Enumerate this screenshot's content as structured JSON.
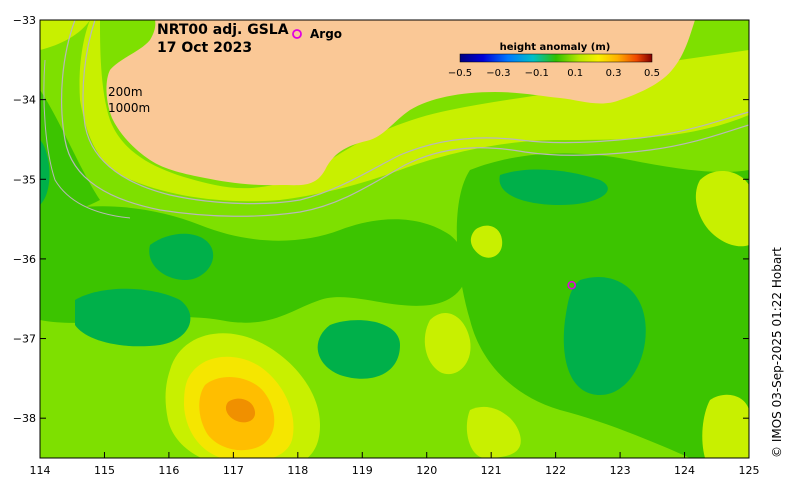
{
  "title": {
    "product": "NRT00 adj. GSLA",
    "date": "17 Oct 2023"
  },
  "legend": {
    "argo_symbol": "o",
    "argo_label": "Argo"
  },
  "depth_contours": {
    "shallow": "200m",
    "deep": "1000m"
  },
  "colorbar": {
    "title": "height anomaly (m)",
    "ticks": [
      "−0.5",
      "−0.3",
      "−0.1",
      "0.1",
      "0.3",
      "0.5"
    ],
    "colors": [
      "#000080",
      "#0000c8",
      "#0050ff",
      "#00a0ff",
      "#00c8c0",
      "#00b040",
      "#10c020",
      "#60d800",
      "#b0e800",
      "#f0f000",
      "#ffc000",
      "#ff8000",
      "#e04000",
      "#800000"
    ]
  },
  "axes": {
    "longitude_ticks": [
      "114",
      "115",
      "116",
      "117",
      "118",
      "119",
      "120",
      "121",
      "122",
      "123",
      "124",
      "125"
    ],
    "latitude_ticks": [
      "−33",
      "−34",
      "−35",
      "−36",
      "−37",
      "−38"
    ]
  },
  "argo_float": {
    "lon": 122.25,
    "lat": -36.33
  },
  "credit": "© IMOS 03‑Sep‑2025 01:22 Hobart",
  "colors": {
    "land": "#fac896",
    "ocean_base": "#7ee000",
    "low_anomaly": "#3cc400",
    "very_low_anomaly": "#00b04a",
    "high_anomaly": "#c8f000",
    "peak_yellow": "#f5e600",
    "peak_orange": "#ffbe00",
    "peak_core": "#f09000",
    "contour": "#b8b8b8",
    "argo": "#e000e0"
  }
}
